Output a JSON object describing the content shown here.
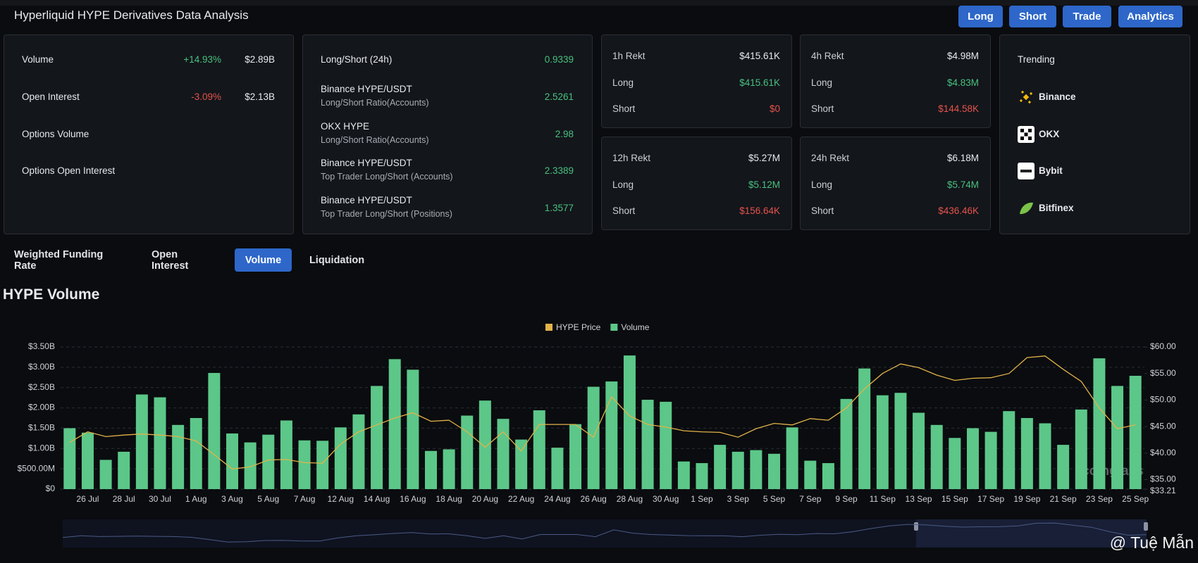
{
  "header": {
    "title": "Hyperliquid HYPE Derivatives Data Analysis",
    "buttons": [
      "Long",
      "Short",
      "Trade",
      "Analytics"
    ]
  },
  "overview": {
    "rows": [
      {
        "label": "Volume",
        "change": "+14.93%",
        "value": "$2.89B"
      },
      {
        "label": "Open Interest",
        "change": "-3.09%",
        "value": "$2.13B"
      },
      {
        "label": "Options Volume"
      },
      {
        "label": "Options Open Interest"
      }
    ]
  },
  "ratios": {
    "rows": [
      {
        "label": "Long/Short (24h)",
        "value": "0.9339"
      },
      {
        "label": "Binance HYPE/USDT",
        "sublabel": "Long/Short Ratio(Accounts)",
        "value": "2.5261"
      },
      {
        "label": "OKX HYPE",
        "sublabel": "Long/Short Ratio(Accounts)",
        "value": "2.98"
      },
      {
        "label": "Binance HYPE/USDT",
        "sublabel": "Top Trader Long/Short (Accounts)",
        "value": "2.3389"
      },
      {
        "label": "Binance HYPE/USDT",
        "sublabel": "Top Trader Long/Short (Positions)",
        "value": "1.3577"
      }
    ]
  },
  "rekt": [
    {
      "rows": [
        {
          "label": "1h Rekt",
          "value": "$415.61K"
        },
        {
          "label": "Long",
          "value": "$415.61K"
        },
        {
          "label": "Short",
          "value": "$0"
        }
      ]
    },
    {
      "rows": [
        {
          "label": "4h Rekt",
          "value": "$4.98M"
        },
        {
          "label": "Long",
          "value": "$4.83M"
        },
        {
          "label": "Short",
          "value": "$144.58K"
        }
      ]
    },
    {
      "rows": [
        {
          "label": "12h Rekt",
          "value": "$5.27M"
        },
        {
          "label": "Long",
          "value": "$5.12M"
        },
        {
          "label": "Short",
          "value": "$156.64K"
        }
      ]
    },
    {
      "rows": [
        {
          "label": "24h Rekt",
          "value": "$6.18M"
        },
        {
          "label": "Long",
          "value": "$5.74M"
        },
        {
          "label": "Short",
          "value": "$436.46K"
        }
      ]
    }
  ],
  "trending": {
    "title": "Trending",
    "items": [
      "Binance",
      "OKX",
      "Bybit",
      "Bitfinex"
    ]
  },
  "tabs": {
    "items": [
      "Weighted Funding Rate",
      "Open Interest",
      "Volume",
      "Liquidation"
    ],
    "active": 2
  },
  "watermarks": [
    "coinglass",
    "@ Tuệ Mẫn"
  ],
  "chart_data": {
    "type": "bar",
    "title": "HYPE Volume",
    "categories": [
      null,
      "26 Jul",
      null,
      "28 Jul",
      null,
      "30 Jul",
      null,
      "1 Aug",
      null,
      "3 Aug",
      null,
      "5 Aug",
      null,
      "7 Aug",
      null,
      "12 Aug",
      null,
      "14 Aug",
      null,
      "16 Aug",
      null,
      "18 Aug",
      null,
      "20 Aug",
      null,
      "22 Aug",
      null,
      "24 Aug",
      null,
      "26 Aug",
      null,
      "28 Aug",
      null,
      "30 Aug",
      null,
      "1 Sep",
      null,
      "3 Sep",
      null,
      "5 Sep",
      null,
      "7 Sep",
      null,
      "9 Sep",
      null,
      "11 Sep",
      null,
      "13 Sep",
      null,
      "15 Sep",
      null,
      "17 Sep",
      null,
      "19 Sep",
      null,
      "21 Sep",
      null,
      "23 Sep",
      null,
      "25 Sep"
    ],
    "series": [
      {
        "name": "HYPE Price",
        "type": "line",
        "axis": "y2",
        "color": "#e2b34a",
        "values": [
          42.0,
          44.0,
          43.1,
          43.4,
          43.6,
          43.4,
          43.1,
          42.3,
          39.7,
          37.0,
          37.4,
          38.7,
          38.8,
          38.2,
          38.1,
          41.7,
          44.0,
          45.3,
          46.6,
          47.6,
          46.0,
          46.2,
          44.0,
          41.1,
          44.0,
          40.4,
          45.4,
          45.4,
          45.4,
          43.0,
          50.6,
          47.0,
          45.4,
          44.9,
          44.2,
          44.0,
          43.9,
          43.0,
          44.6,
          45.6,
          45.3,
          46.5,
          46.2,
          48.5,
          52.1,
          55.0,
          56.8,
          56.1,
          54.7,
          53.7,
          54.1,
          54.2,
          55.0,
          58.0,
          58.3,
          55.8,
          53.5,
          48.5,
          44.6,
          45.3
        ]
      },
      {
        "name": "Volume",
        "type": "bar",
        "color": "#5cc789",
        "values": [
          1500000000,
          1390000000,
          720000000,
          920000000,
          2330000000,
          2260000000,
          1580000000,
          1750000000,
          2860000000,
          1370000000,
          1150000000,
          1340000000,
          1690000000,
          1200000000,
          1190000000,
          1520000000,
          1840000000,
          2540000000,
          3200000000,
          2940000000,
          940000000,
          980000000,
          1810000000,
          2180000000,
          1730000000,
          1220000000,
          1940000000,
          1020000000,
          1600000000,
          2520000000,
          2650000000,
          3290000000,
          2200000000,
          2150000000,
          680000000,
          640000000,
          1090000000,
          920000000,
          960000000,
          870000000,
          1520000000,
          700000000,
          640000000,
          2220000000,
          2970000000,
          2310000000,
          2370000000,
          1880000000,
          1580000000,
          1260000000,
          1500000000,
          1410000000,
          1920000000,
          1750000000,
          1620000000,
          1090000000,
          1960000000,
          3220000000,
          2540000000,
          2790000000
        ]
      }
    ],
    "ylim": [
      0,
      3500000000
    ],
    "yticks": [
      {
        "value": 0,
        "label": "$0"
      },
      {
        "value": 500000000,
        "label": "$500.00M"
      },
      {
        "value": 1000000000,
        "label": "$1.00B"
      },
      {
        "value": 1500000000,
        "label": "$1.50B"
      },
      {
        "value": 2000000000,
        "label": "$2.00B"
      },
      {
        "value": 2500000000,
        "label": "$2.50B"
      },
      {
        "value": 3000000000,
        "label": "$3.00B"
      },
      {
        "value": 3500000000,
        "label": "$3.50B"
      }
    ],
    "y2lim": [
      33.21,
      60
    ],
    "y2ticks": [
      {
        "value": 33.21,
        "label": "$33.21"
      },
      {
        "value": 35,
        "label": "$35.00"
      },
      {
        "value": 40,
        "label": "$40.00"
      },
      {
        "value": 45,
        "label": "$45.00"
      },
      {
        "value": 50,
        "label": "$50.00"
      },
      {
        "value": 55,
        "label": "$55.00"
      },
      {
        "value": 60,
        "label": "$60.00"
      }
    ],
    "grid": true,
    "legend": "top"
  }
}
